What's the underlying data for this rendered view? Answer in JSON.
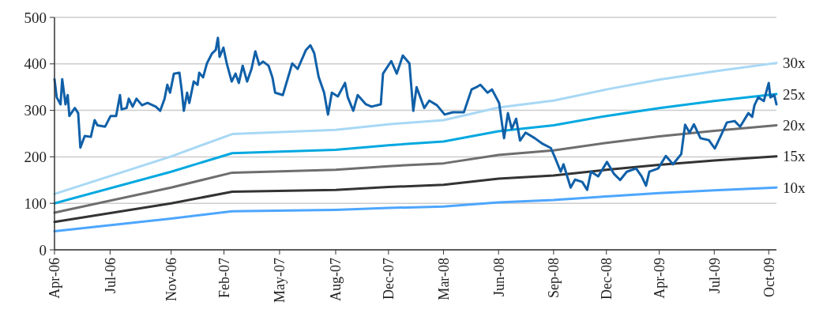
{
  "chart_data": {
    "type": "line",
    "xlim": [
      "2006-04-03",
      "2009-11-05"
    ],
    "ylim": [
      0,
      500
    ],
    "yticks": [
      0,
      100,
      200,
      300,
      400,
      500
    ],
    "xticks": [
      {
        "value": "2006-04-03",
        "label": "Apr-06"
      },
      {
        "value": "2006-07-13",
        "label": "Jul-06"
      },
      {
        "value": "2006-11-01",
        "label": "Nov-06"
      },
      {
        "value": "2007-02-05",
        "label": "Feb-07"
      },
      {
        "value": "2007-05-17",
        "label": "May-07"
      },
      {
        "value": "2007-08-27",
        "label": "Aug-07"
      },
      {
        "value": "2007-12-01",
        "label": "Dec-07"
      },
      {
        "value": "2008-03-10",
        "label": "Mar-08"
      },
      {
        "value": "2008-06-18",
        "label": "Jun-08"
      },
      {
        "value": "2008-09-26",
        "label": "Sep-08"
      },
      {
        "value": "2008-12-31",
        "label": "Dec-08"
      },
      {
        "value": "2009-04-06",
        "label": "Apr-09"
      },
      {
        "value": "2009-07-15",
        "label": "Jul-09"
      },
      {
        "value": "2009-10-22",
        "label": "Oct-09"
      }
    ],
    "grid": "y",
    "marker": "none",
    "line_style": "solid",
    "series": [
      {
        "name": "30x",
        "color": "#a8d8f5",
        "x": [
          "2006-04-03",
          "2006-11-01",
          "2007-02-20",
          "2007-08-27",
          "2007-12-01",
          "2008-03-10",
          "2008-06-18",
          "2008-09-26",
          "2008-12-31",
          "2009-04-06",
          "2009-07-15",
          "2009-11-05"
        ],
        "values": [
          120,
          201,
          249,
          258,
          270,
          279,
          306,
          321,
          345,
          366,
          384,
          402
        ]
      },
      {
        "name": "25x",
        "color": "#00a8e0",
        "x": [
          "2006-04-03",
          "2006-11-01",
          "2007-02-20",
          "2007-08-27",
          "2007-12-01",
          "2008-03-10",
          "2008-06-18",
          "2008-09-26",
          "2008-12-31",
          "2009-04-06",
          "2009-07-15",
          "2009-11-05"
        ],
        "values": [
          100,
          168,
          208,
          215,
          225,
          233,
          255,
          268,
          288,
          305,
          320,
          335
        ]
      },
      {
        "name": "20x",
        "color": "#6e6e6e",
        "x": [
          "2006-04-03",
          "2006-11-01",
          "2007-02-20",
          "2007-08-27",
          "2007-12-01",
          "2008-03-10",
          "2008-06-18",
          "2008-09-26",
          "2008-12-31",
          "2009-04-06",
          "2009-07-15",
          "2009-11-05"
        ],
        "values": [
          80,
          134,
          166,
          172,
          180,
          186,
          204,
          214,
          230,
          244,
          256,
          268
        ]
      },
      {
        "name": "15x",
        "color": "#333333",
        "x": [
          "2006-04-03",
          "2006-11-01",
          "2007-02-20",
          "2007-08-27",
          "2007-12-01",
          "2008-03-10",
          "2008-06-18",
          "2008-09-26",
          "2008-12-31",
          "2009-04-06",
          "2009-07-15",
          "2009-11-05"
        ],
        "values": [
          60,
          100,
          125,
          129,
          135,
          140,
          153,
          160,
          172,
          183,
          192,
          201
        ]
      },
      {
        "name": "10x",
        "color": "#4da6ff",
        "x": [
          "2006-04-03",
          "2006-11-01",
          "2007-02-20",
          "2007-08-27",
          "2007-12-01",
          "2008-03-10",
          "2008-06-18",
          "2008-09-26",
          "2008-12-31",
          "2009-04-06",
          "2009-07-15",
          "2009-11-05"
        ],
        "values": [
          40,
          67,
          83,
          86,
          90,
          93,
          102,
          107,
          115,
          122,
          128,
          134
        ]
      },
      {
        "color": "#1060a8",
        "x": [
          "2006-04-03",
          "2006-04-07",
          "2006-04-14",
          "2006-04-17",
          "2006-04-23",
          "2006-04-27",
          "2006-04-30",
          "2006-05-10",
          "2006-05-16",
          "2006-05-20",
          "2006-05-28",
          "2006-06-08",
          "2006-06-15",
          "2006-06-20",
          "2006-07-04",
          "2006-07-14",
          "2006-07-24",
          "2006-07-31",
          "2006-08-03",
          "2006-08-12",
          "2006-08-16",
          "2006-08-23",
          "2006-08-30",
          "2006-09-09",
          "2006-09-19",
          "2006-10-04",
          "2006-10-12",
          "2006-10-20",
          "2006-10-25",
          "2006-10-30",
          "2006-11-06",
          "2006-11-16",
          "2006-11-20",
          "2006-11-24",
          "2006-11-30",
          "2006-12-04",
          "2006-12-12",
          "2006-12-19",
          "2006-12-22",
          "2006-12-29",
          "2007-01-05",
          "2007-01-14",
          "2007-01-21",
          "2007-01-25",
          "2007-01-28",
          "2007-02-04",
          "2007-02-10",
          "2007-02-19",
          "2007-02-26",
          "2007-03-04",
          "2007-03-11",
          "2007-03-19",
          "2007-03-27",
          "2007-04-03",
          "2007-04-10",
          "2007-04-17",
          "2007-04-27",
          "2007-05-04",
          "2007-05-09",
          "2007-05-23",
          "2007-06-09",
          "2007-06-19",
          "2007-07-04",
          "2007-07-12",
          "2007-07-19",
          "2007-07-27",
          "2007-08-06",
          "2007-08-13",
          "2007-08-20",
          "2007-08-31",
          "2007-09-13",
          "2007-09-18",
          "2007-09-28",
          "2007-10-06",
          "2007-10-21",
          "2007-10-31",
          "2007-11-17",
          "2007-11-21",
          "2007-12-06",
          "2007-12-16",
          "2007-12-27",
          "2008-01-08",
          "2008-01-15",
          "2008-01-21",
          "2008-02-04",
          "2008-02-13",
          "2008-02-27",
          "2008-03-12",
          "2008-03-27",
          "2008-04-16",
          "2008-04-30",
          "2008-05-09",
          "2008-05-16",
          "2008-05-29",
          "2008-06-06",
          "2008-06-19",
          "2008-06-28",
          "2008-07-05",
          "2008-07-12",
          "2008-07-20",
          "2008-07-27",
          "2008-08-06",
          "2008-08-23",
          "2008-09-06",
          "2008-09-21",
          "2008-09-28",
          "2008-10-09",
          "2008-10-14",
          "2008-10-27",
          "2008-11-04",
          "2008-11-17",
          "2008-11-26",
          "2008-12-03",
          "2008-12-16",
          "2009-01-01",
          "2009-01-14",
          "2009-01-25",
          "2009-02-06",
          "2009-02-23",
          "2009-03-05",
          "2009-03-13",
          "2009-03-19",
          "2009-04-04",
          "2009-04-18",
          "2009-05-01",
          "2009-05-16",
          "2009-05-23",
          "2009-05-31",
          "2009-06-08",
          "2009-06-20",
          "2009-07-05",
          "2009-07-16",
          "2009-07-28",
          "2009-08-07",
          "2009-08-21",
          "2009-08-31",
          "2009-09-15",
          "2009-09-22",
          "2009-09-26",
          "2009-10-03",
          "2009-10-13",
          "2009-10-22",
          "2009-10-25",
          "2009-11-01",
          "2009-11-05"
        ],
        "values": [
          367,
          328,
          313,
          367,
          313,
          333,
          288,
          305,
          294,
          220,
          245,
          243,
          279,
          268,
          265,
          288,
          288,
          333,
          302,
          305,
          325,
          308,
          325,
          311,
          316,
          308,
          299,
          325,
          355,
          338,
          379,
          381,
          345,
          299,
          338,
          316,
          362,
          355,
          381,
          371,
          401,
          422,
          430,
          456,
          415,
          435,
          401,
          362,
          379,
          359,
          396,
          362,
          389,
          427,
          398,
          405,
          396,
          371,
          338,
          333,
          401,
          389,
          430,
          440,
          423,
          372,
          338,
          291,
          338,
          330,
          359,
          328,
          299,
          333,
          313,
          308,
          313,
          379,
          406,
          379,
          418,
          401,
          299,
          350,
          305,
          321,
          311,
          291,
          296,
          296,
          345,
          350,
          355,
          338,
          345,
          316,
          240,
          294,
          260,
          282,
          235,
          252,
          240,
          228,
          219,
          200,
          168,
          184,
          134,
          151,
          146,
          129,
          168,
          158,
          189,
          163,
          150,
          168,
          175,
          158,
          138,
          168,
          175,
          202,
          184,
          206,
          269,
          252,
          270,
          240,
          236,
          218,
          248,
          274,
          277,
          265,
          294,
          286,
          311,
          328,
          320,
          359,
          328,
          333,
          313
        ]
      }
    ]
  }
}
